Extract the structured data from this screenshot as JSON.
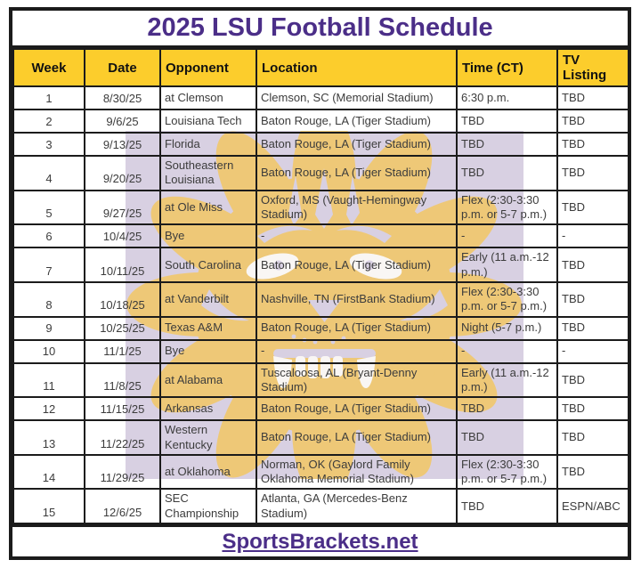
{
  "title": "2025 LSU Football Schedule",
  "colors": {
    "title_purple": "#4b2e88",
    "header_gold": "#fccd2c",
    "border_black": "#1b1b1b",
    "cell_text": "#3c3c3c",
    "watermark_lavender": "#d8d0e2",
    "watermark_gold": "#f1c86c"
  },
  "watermark": {
    "name": "lsu-tiger-eye-watermark"
  },
  "table": {
    "column_keys": [
      "week",
      "date",
      "opponent",
      "location",
      "time",
      "tv"
    ],
    "columns": [
      {
        "key": "week",
        "label": "Week"
      },
      {
        "key": "date",
        "label": "Date"
      },
      {
        "key": "opponent",
        "label": "Opponent"
      },
      {
        "key": "location",
        "label": "Location"
      },
      {
        "key": "time",
        "label": "Time (CT)"
      },
      {
        "key": "tv",
        "label": "TV Listing"
      }
    ],
    "rows": [
      {
        "week": "1",
        "date": "8/30/25",
        "opponent": "at Clemson",
        "location": "Clemson, SC (Memorial Stadium)",
        "time": "6:30 p.m.",
        "tv": "TBD"
      },
      {
        "week": "2",
        "date": "9/6/25",
        "opponent": "Louisiana Tech",
        "location": "Baton Rouge, LA (Tiger Stadium)",
        "time": "TBD",
        "tv": "TBD"
      },
      {
        "week": "3",
        "date": "9/13/25",
        "opponent": "Florida",
        "location": "Baton Rouge, LA (Tiger Stadium)",
        "time": "TBD",
        "tv": "TBD"
      },
      {
        "week": "4",
        "date": "9/20/25",
        "opponent": "Southeastern Louisiana",
        "location": "Baton Rouge, LA (Tiger Stadium)",
        "time": "TBD",
        "tv": "TBD"
      },
      {
        "week": "5",
        "date": "9/27/25",
        "opponent": "at Ole Miss",
        "location": "Oxford, MS (Vaught-Hemingway Stadium)",
        "time": "Flex (2:30-3:30 p.m. or 5-7 p.m.)",
        "tv": "TBD"
      },
      {
        "week": "6",
        "date": "10/4/25",
        "opponent": "Bye",
        "location": "-",
        "time": "-",
        "tv": "-"
      },
      {
        "week": "7",
        "date": "10/11/25",
        "opponent": "South Carolina",
        "location": "Baton Rouge, LA (Tiger Stadium)",
        "time": "Early (11 a.m.-12 p.m.)",
        "tv": "TBD"
      },
      {
        "week": "8",
        "date": "10/18/25",
        "opponent": "at Vanderbilt",
        "location": "Nashville, TN (FirstBank Stadium)",
        "time": "Flex (2:30-3:30 p.m. or 5-7 p.m.)",
        "tv": "TBD"
      },
      {
        "week": "9",
        "date": "10/25/25",
        "opponent": "Texas A&M",
        "location": "Baton Rouge, LA (Tiger Stadium)",
        "time": "Night (5-7 p.m.)",
        "tv": "TBD"
      },
      {
        "week": "10",
        "date": "11/1/25",
        "opponent": "Bye",
        "location": "-",
        "time": "-",
        "tv": "-"
      },
      {
        "week": "11",
        "date": "11/8/25",
        "opponent": "at Alabama",
        "location": "Tuscaloosa, AL (Bryant-Denny Stadium)",
        "time": "Early (11 a.m.-12 p.m.)",
        "tv": "TBD"
      },
      {
        "week": "12",
        "date": "11/15/25",
        "opponent": "Arkansas",
        "location": "Baton Rouge, LA (Tiger Stadium)",
        "time": "TBD",
        "tv": "TBD"
      },
      {
        "week": "13",
        "date": "11/22/25",
        "opponent": "Western Kentucky",
        "location": "Baton Rouge, LA (Tiger Stadium)",
        "time": "TBD",
        "tv": "TBD"
      },
      {
        "week": "14",
        "date": "11/29/25",
        "opponent": "at Oklahoma",
        "location": "Norman, OK (Gaylord Family Oklahoma Memorial Stadium)",
        "time": "Flex (2:30-3:30 p.m. or 5-7 p.m.)",
        "tv": "TBD"
      },
      {
        "week": "15",
        "date": "12/6/25",
        "opponent": "SEC Championship",
        "location": "Atlanta, GA (Mercedes-Benz Stadium)",
        "time": "TBD",
        "tv": "ESPN/ABC"
      }
    ]
  },
  "footer": {
    "link_label": "SportsBrackets.net"
  }
}
